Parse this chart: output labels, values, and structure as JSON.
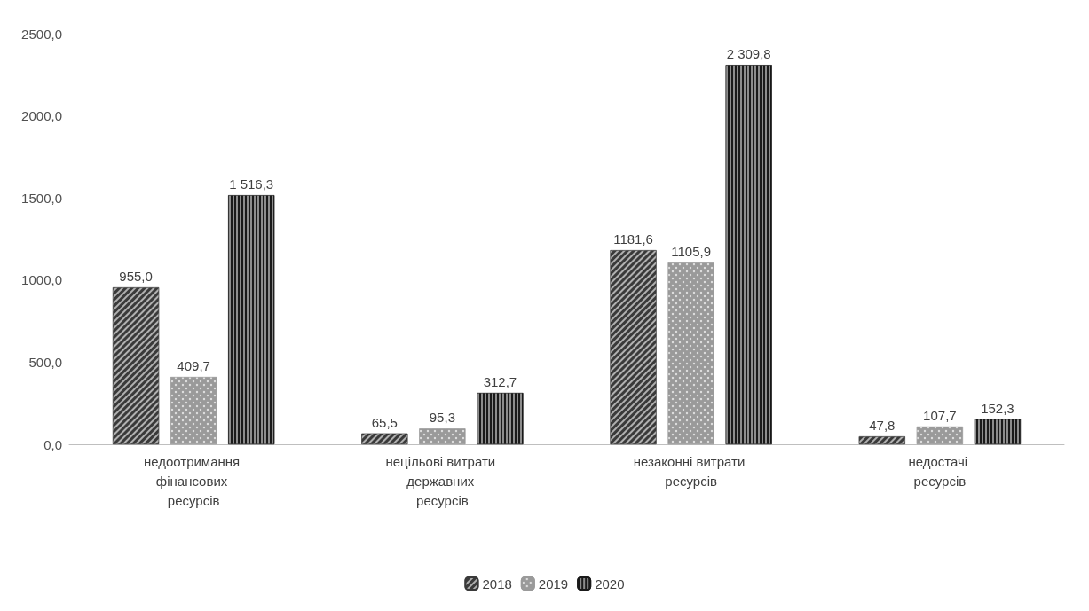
{
  "chart_data": {
    "type": "bar",
    "categories": [
      "недоотримання фінансових ресурсів",
      "нецільові витрати державних ресурсів",
      "незаконні витрати ресурсів",
      "недостачі ресурсів"
    ],
    "series": [
      {
        "name": "2018",
        "color": "#3a3a3a",
        "values": [
          955.0,
          65.5,
          1181.6,
          47.8
        ],
        "value_labels": [
          "955,0",
          "65,5",
          "1181,6",
          "47,8"
        ]
      },
      {
        "name": "2019",
        "color": "#9a9a9a",
        "values": [
          409.7,
          95.3,
          1105.9,
          107.7
        ],
        "value_labels": [
          "409,7",
          "95,3",
          "1105,9",
          "107,7"
        ]
      },
      {
        "name": "2020",
        "color": "#1a1a1a",
        "values": [
          1516.3,
          312.7,
          2309.8,
          152.3
        ],
        "value_labels": [
          "1 516,3",
          "312,7",
          "2 309,8",
          "152,3"
        ]
      }
    ],
    "ylim": [
      0,
      2500
    ],
    "yticks": [
      {
        "value": 0,
        "label": "0,0"
      },
      {
        "value": 500,
        "label": "500,0"
      },
      {
        "value": 1000,
        "label": "1000,0"
      },
      {
        "value": 1500,
        "label": "1500,0"
      },
      {
        "value": 2000,
        "label": "2000,0"
      },
      {
        "value": 2500,
        "label": "2500,0"
      }
    ],
    "grid": false,
    "legend": "bottom"
  }
}
